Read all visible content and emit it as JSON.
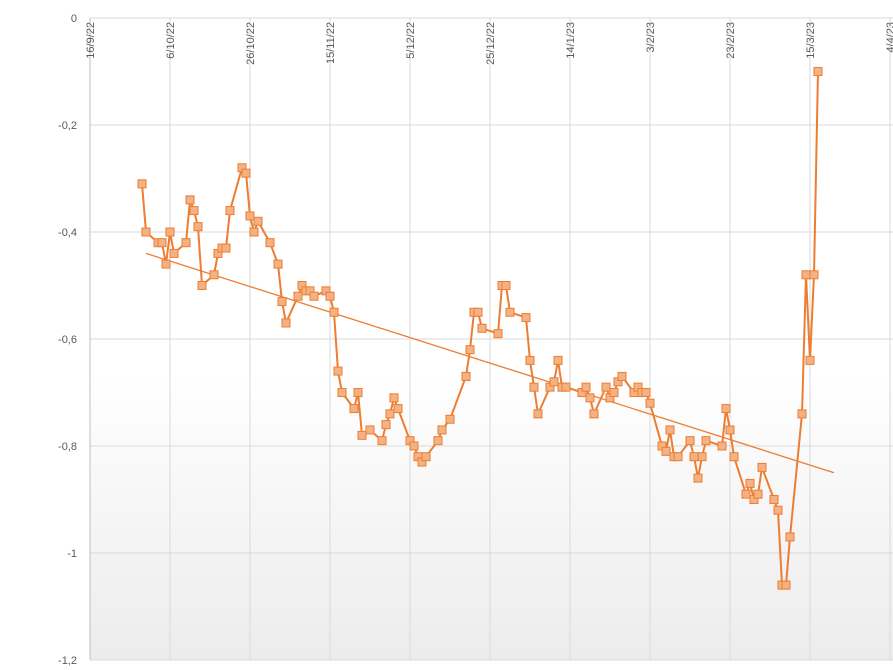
{
  "chart_data": {
    "type": "line",
    "title": "",
    "xlabel": "",
    "ylabel": "",
    "x_ticks": [
      "16/9/22",
      "6/10/22",
      "26/10/22",
      "15/11/22",
      "5/12/22",
      "25/12/22",
      "14/1/23",
      "3/2/23",
      "23/2/23",
      "15/3/23",
      "4/4/23"
    ],
    "y_ticks": [
      "0",
      "-0,2",
      "-0,4",
      "-0,6",
      "-0,8",
      "-1",
      "-1,2"
    ],
    "xlim": [
      "2022-09-16",
      "2023-04-04"
    ],
    "ylim": [
      -1.2,
      0
    ],
    "grid": true,
    "legend": "none",
    "series": [
      {
        "marker": "square",
        "color": "#ED7D31",
        "marker_fill": "#F4B183",
        "points": [
          {
            "x": "2022-09-29",
            "y": -0.31
          },
          {
            "x": "2022-09-30",
            "y": -0.4
          },
          {
            "x": "2022-10-03",
            "y": -0.42
          },
          {
            "x": "2022-10-04",
            "y": -0.42
          },
          {
            "x": "2022-10-05",
            "y": -0.46
          },
          {
            "x": "2022-10-06",
            "y": -0.4
          },
          {
            "x": "2022-10-07",
            "y": -0.44
          },
          {
            "x": "2022-10-10",
            "y": -0.42
          },
          {
            "x": "2022-10-11",
            "y": -0.34
          },
          {
            "x": "2022-10-12",
            "y": -0.36
          },
          {
            "x": "2022-10-13",
            "y": -0.39
          },
          {
            "x": "2022-10-14",
            "y": -0.5
          },
          {
            "x": "2022-10-17",
            "y": -0.48
          },
          {
            "x": "2022-10-18",
            "y": -0.44
          },
          {
            "x": "2022-10-19",
            "y": -0.43
          },
          {
            "x": "2022-10-20",
            "y": -0.43
          },
          {
            "x": "2022-10-21",
            "y": -0.36
          },
          {
            "x": "2022-10-24",
            "y": -0.28
          },
          {
            "x": "2022-10-25",
            "y": -0.29
          },
          {
            "x": "2022-10-26",
            "y": -0.37
          },
          {
            "x": "2022-10-27",
            "y": -0.4
          },
          {
            "x": "2022-10-28",
            "y": -0.38
          },
          {
            "x": "2022-10-31",
            "y": -0.42
          },
          {
            "x": "2022-11-02",
            "y": -0.46
          },
          {
            "x": "2022-11-03",
            "y": -0.53
          },
          {
            "x": "2022-11-04",
            "y": -0.57
          },
          {
            "x": "2022-11-07",
            "y": -0.52
          },
          {
            "x": "2022-11-08",
            "y": -0.5
          },
          {
            "x": "2022-11-09",
            "y": -0.51
          },
          {
            "x": "2022-11-10",
            "y": -0.51
          },
          {
            "x": "2022-11-11",
            "y": -0.52
          },
          {
            "x": "2022-11-14",
            "y": -0.51
          },
          {
            "x": "2022-11-15",
            "y": -0.52
          },
          {
            "x": "2022-11-16",
            "y": -0.55
          },
          {
            "x": "2022-11-17",
            "y": -0.66
          },
          {
            "x": "2022-11-18",
            "y": -0.7
          },
          {
            "x": "2022-11-21",
            "y": -0.73
          },
          {
            "x": "2022-11-22",
            "y": -0.7
          },
          {
            "x": "2022-11-23",
            "y": -0.78
          },
          {
            "x": "2022-11-25",
            "y": -0.77
          },
          {
            "x": "2022-11-28",
            "y": -0.79
          },
          {
            "x": "2022-11-29",
            "y": -0.76
          },
          {
            "x": "2022-11-30",
            "y": -0.74
          },
          {
            "x": "2022-12-01",
            "y": -0.71
          },
          {
            "x": "2022-12-02",
            "y": -0.73
          },
          {
            "x": "2022-12-05",
            "y": -0.79
          },
          {
            "x": "2022-12-06",
            "y": -0.8
          },
          {
            "x": "2022-12-07",
            "y": -0.82
          },
          {
            "x": "2022-12-08",
            "y": -0.83
          },
          {
            "x": "2022-12-09",
            "y": -0.82
          },
          {
            "x": "2022-12-12",
            "y": -0.79
          },
          {
            "x": "2022-12-13",
            "y": -0.77
          },
          {
            "x": "2022-12-15",
            "y": -0.75
          },
          {
            "x": "2022-12-19",
            "y": -0.67
          },
          {
            "x": "2022-12-20",
            "y": -0.62
          },
          {
            "x": "2022-12-21",
            "y": -0.55
          },
          {
            "x": "2022-12-22",
            "y": -0.55
          },
          {
            "x": "2022-12-23",
            "y": -0.58
          },
          {
            "x": "2022-12-27",
            "y": -0.59
          },
          {
            "x": "2022-12-28",
            "y": -0.5
          },
          {
            "x": "2022-12-29",
            "y": -0.5
          },
          {
            "x": "2022-12-30",
            "y": -0.55
          },
          {
            "x": "2023-01-03",
            "y": -0.56
          },
          {
            "x": "2023-01-04",
            "y": -0.64
          },
          {
            "x": "2023-01-05",
            "y": -0.69
          },
          {
            "x": "2023-01-06",
            "y": -0.74
          },
          {
            "x": "2023-01-09",
            "y": -0.69
          },
          {
            "x": "2023-01-10",
            "y": -0.68
          },
          {
            "x": "2023-01-11",
            "y": -0.64
          },
          {
            "x": "2023-01-12",
            "y": -0.69
          },
          {
            "x": "2023-01-13",
            "y": -0.69
          },
          {
            "x": "2023-01-17",
            "y": -0.7
          },
          {
            "x": "2023-01-18",
            "y": -0.69
          },
          {
            "x": "2023-01-19",
            "y": -0.71
          },
          {
            "x": "2023-01-20",
            "y": -0.74
          },
          {
            "x": "2023-01-23",
            "y": -0.69
          },
          {
            "x": "2023-01-24",
            "y": -0.71
          },
          {
            "x": "2023-01-25",
            "y": -0.7
          },
          {
            "x": "2023-01-26",
            "y": -0.68
          },
          {
            "x": "2023-01-27",
            "y": -0.67
          },
          {
            "x": "2023-01-30",
            "y": -0.7
          },
          {
            "x": "2023-01-31",
            "y": -0.69
          },
          {
            "x": "2023-02-01",
            "y": -0.7
          },
          {
            "x": "2023-02-02",
            "y": -0.7
          },
          {
            "x": "2023-02-03",
            "y": -0.72
          },
          {
            "x": "2023-02-06",
            "y": -0.8
          },
          {
            "x": "2023-02-07",
            "y": -0.81
          },
          {
            "x": "2023-02-08",
            "y": -0.77
          },
          {
            "x": "2023-02-09",
            "y": -0.82
          },
          {
            "x": "2023-02-10",
            "y": -0.82
          },
          {
            "x": "2023-02-13",
            "y": -0.79
          },
          {
            "x": "2023-02-14",
            "y": -0.82
          },
          {
            "x": "2023-02-15",
            "y": -0.86
          },
          {
            "x": "2023-02-16",
            "y": -0.82
          },
          {
            "x": "2023-02-17",
            "y": -0.79
          },
          {
            "x": "2023-02-21",
            "y": -0.8
          },
          {
            "x": "2023-02-22",
            "y": -0.73
          },
          {
            "x": "2023-02-23",
            "y": -0.77
          },
          {
            "x": "2023-02-24",
            "y": -0.82
          },
          {
            "x": "2023-02-27",
            "y": -0.89
          },
          {
            "x": "2023-02-28",
            "y": -0.87
          },
          {
            "x": "2023-03-01",
            "y": -0.9
          },
          {
            "x": "2023-03-02",
            "y": -0.89
          },
          {
            "x": "2023-03-03",
            "y": -0.84
          },
          {
            "x": "2023-03-06",
            "y": -0.9
          },
          {
            "x": "2023-03-07",
            "y": -0.92
          },
          {
            "x": "2023-03-08",
            "y": -1.06
          },
          {
            "x": "2023-03-09",
            "y": -1.06
          },
          {
            "x": "2023-03-10",
            "y": -0.97
          },
          {
            "x": "2023-03-13",
            "y": -0.74
          },
          {
            "x": "2023-03-14",
            "y": -0.48
          },
          {
            "x": "2023-03-15",
            "y": -0.64
          },
          {
            "x": "2023-03-16",
            "y": -0.48
          },
          {
            "x": "2023-03-17",
            "y": -0.1
          }
        ]
      }
    ],
    "trendline": {
      "type": "linear",
      "color": "#ED7D31",
      "points": [
        {
          "x": "2022-09-30",
          "y": -0.44
        },
        {
          "x": "2023-03-21",
          "y": -0.85
        }
      ]
    }
  }
}
